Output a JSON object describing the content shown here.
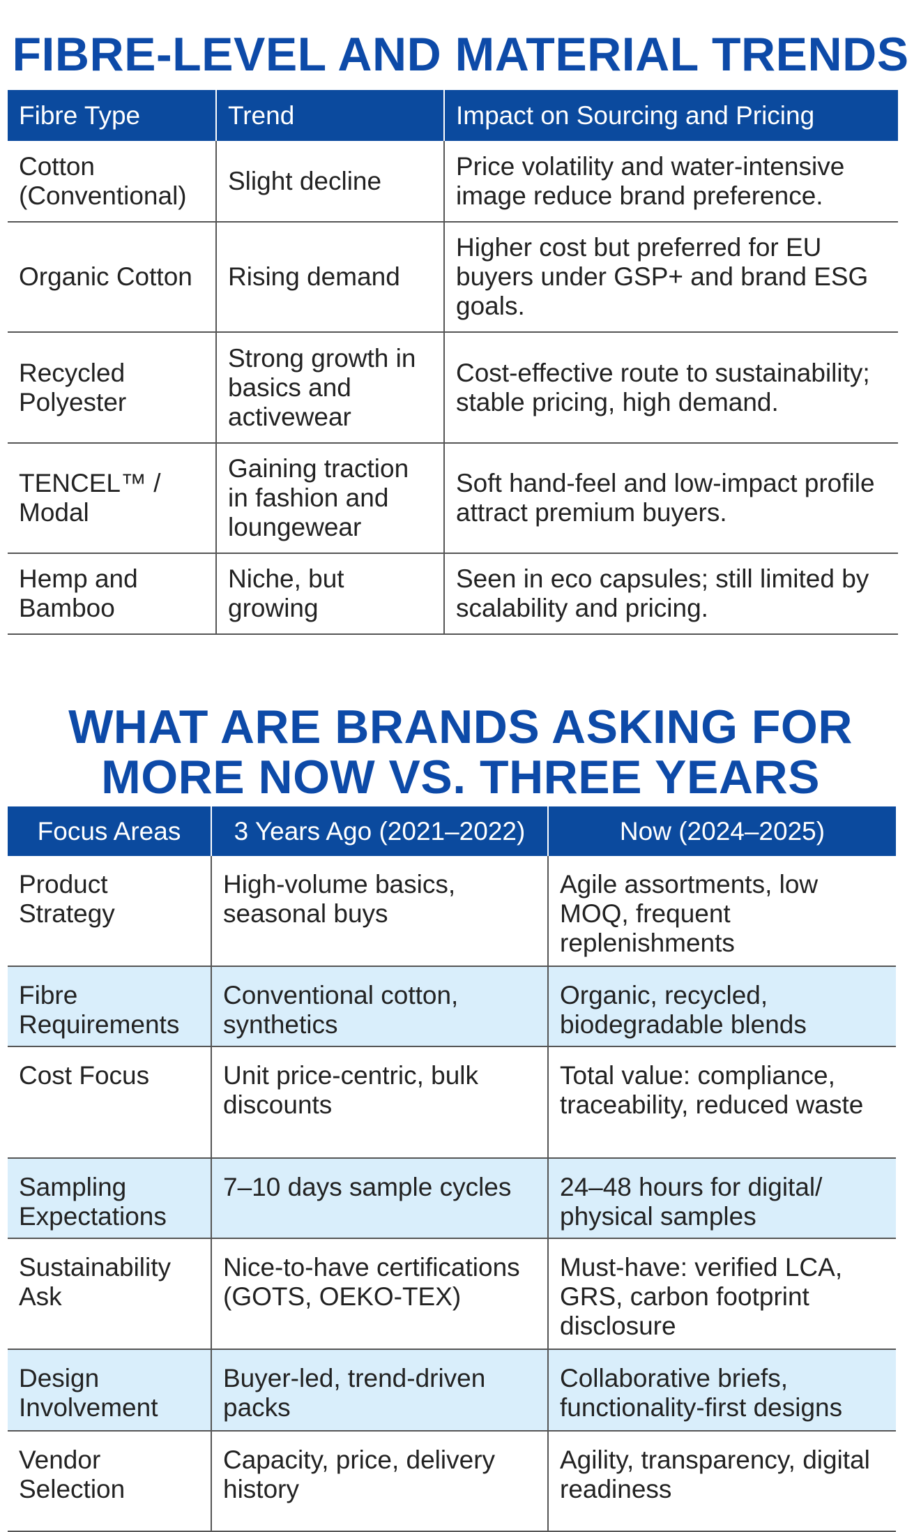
{
  "table1": {
    "title": "FIBRE-LEVEL AND MATERIAL TRENDS",
    "header": [
      "Fibre Type",
      "Trend",
      "Impact on Sourcing and Pricing"
    ],
    "rows": [
      [
        "Cotton (Conventional)",
        "Slight decline",
        "Price volatility and water-intensive image reduce brand preference."
      ],
      [
        "Organic Cotton",
        "Rising demand",
        "Higher cost but preferred for EU buyers under GSP+ and brand ESG goals."
      ],
      [
        "Recycled Polyester",
        "Strong growth in basics and activewear",
        "Cost-effective route to sustainability; stable pricing, high demand."
      ],
      [
        "TENCEL™ / Modal",
        "Gaining traction in fashion and loungewear",
        "Soft hand-feel and low-impact profile attract premium buyers."
      ],
      [
        "Hemp and Bamboo",
        "Niche, but growing",
        "Seen in eco capsules; still limited by scalability and pricing."
      ]
    ]
  },
  "table2": {
    "title": "WHAT ARE BRANDS ASKING FOR MORE NOW VS. THREE YEARS AGO?",
    "header": [
      "Focus Areas",
      "3 Years Ago (2021–2022)",
      "Now (2024–2025)"
    ],
    "rows": [
      [
        "Product Strategy",
        "High-volume basics, seasonal buys",
        "Agile assortments, low MOQ, frequent replenishments"
      ],
      [
        "Fibre Requirements",
        "Conventional cotton, synthetics",
        "Organic, recycled, biodegradable blends"
      ],
      [
        "Cost Focus",
        "Unit price-centric, bulk discounts",
        "Total value: compliance, traceability, reduced waste"
      ],
      [
        "Sampling Expectations",
        "7–10 days sample cycles",
        "24–48 hours for digital/ physical samples"
      ],
      [
        "Sustainability Ask",
        "Nice-to-have certifications (GOTS, OEKO-TEX)",
        "Must-have: verified LCA, GRS, carbon footprint disclosure"
      ],
      [
        "Design Involvement",
        "Buyer-led, trend-driven packs",
        "Collaborative briefs, functionality-first designs"
      ],
      [
        "Vendor Selection",
        "Capacity, price, delivery history",
        "Agility, transparency, digital readiness"
      ]
    ]
  }
}
